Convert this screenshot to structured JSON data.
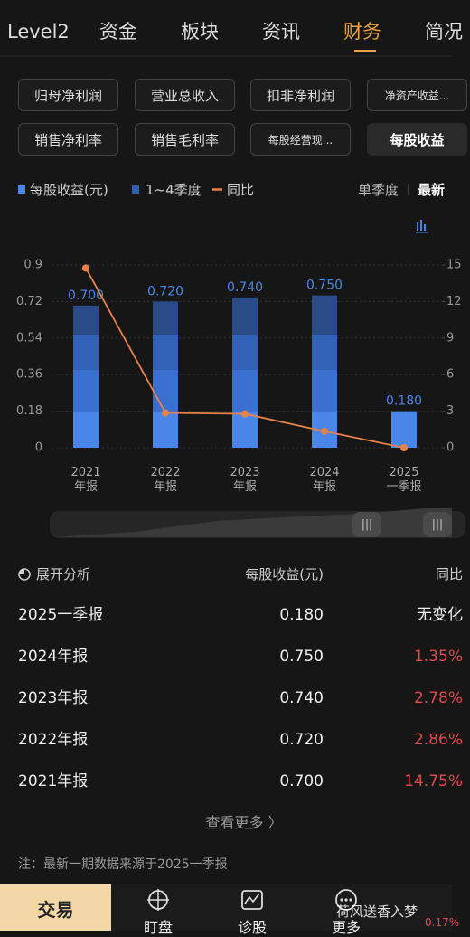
{
  "tabs": [
    "Level2",
    "资金",
    "板块",
    "资讯",
    "财务",
    "简况"
  ],
  "metric_buttons": [
    "归母净利润",
    "营业总收入",
    "扣非净利润",
    "净资产收益...",
    "销售净利率",
    "销售毛利率",
    "每股经营现...",
    "每股收益"
  ],
  "chart_data": {
    "type": "bar",
    "categories": [
      "2021\n年报",
      "2022\n年报",
      "2023\n年报",
      "2024\n年报",
      "2025\n一季报"
    ],
    "series": [
      {
        "name": "每股收益(元)",
        "color": "#4a86e8",
        "values": [
          0.7,
          0.72,
          0.74,
          0.75,
          0.18
        ],
        "value_labels": [
          "0.700",
          "0.720",
          "0.740",
          "0.750",
          "0.180"
        ]
      },
      {
        "name": "同比",
        "type": "line",
        "axis": "y2",
        "color": "#e8824a",
        "values": [
          14.75,
          2.86,
          2.78,
          1.35,
          0
        ]
      }
    ],
    "quarter_legend": {
      "name": "1~4季度",
      "color": "#2f5fb5"
    },
    "ylim": [
      0,
      0.9
    ],
    "yticks": [
      0,
      0.18,
      0.36,
      0.54,
      0.72,
      0.9
    ],
    "y2lim": [
      0,
      15
    ],
    "y2ticks": [
      0,
      3,
      6,
      9,
      12,
      15
    ],
    "grid": true,
    "period_options": [
      "单季度",
      "最新"
    ]
  },
  "analysis_table": {
    "title": "展开分析",
    "columns": [
      "每股收益(元)",
      "同比"
    ],
    "rows": [
      [
        "2025一季报",
        "0.180",
        "无变化"
      ],
      [
        "2024年报",
        "0.750",
        "1.35%"
      ],
      [
        "2023年报",
        "0.740",
        "2.78%"
      ],
      [
        "2022年报",
        "0.720",
        "2.86%"
      ],
      [
        "2021年报",
        "0.700",
        "14.75%"
      ]
    ]
  },
  "more_link": "查看更多 〉",
  "note": "注：最新一期数据来源于2025一季报",
  "bottom_nav": [
    "交易",
    "盯盘",
    "诊股",
    "更多"
  ],
  "watermark": "荷风送香入梦",
  "ticker_change": "0.17%"
}
